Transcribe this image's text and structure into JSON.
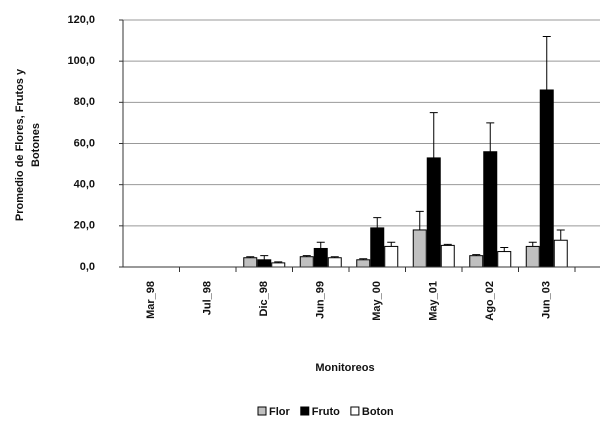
{
  "chart_data": {
    "type": "bar",
    "y_label_lines": [
      "Promedio de Flores, Frutos y",
      "Botones"
    ],
    "x_label": "Monitoreos",
    "categories": [
      "Mar_98",
      "Jul_98",
      "Dic_98",
      "Jun_99",
      "May_00",
      "May_01",
      "Ago_02",
      "Jun_03"
    ],
    "series": [
      {
        "name": "Flor",
        "color": "#c0c0c0",
        "values": [
          0,
          0,
          4.5,
          5,
          3.5,
          18,
          5.5,
          10
        ],
        "errors": [
          0,
          0,
          0.5,
          0.5,
          0.5,
          9,
          0.5,
          2
        ]
      },
      {
        "name": "Fruto",
        "color": "#000000",
        "values": [
          0,
          0,
          3.5,
          9,
          19,
          53,
          56,
          86
        ],
        "errors": [
          0,
          0,
          2,
          3,
          5,
          22,
          14,
          26
        ]
      },
      {
        "name": "Boton",
        "color": "#ffffff",
        "values": [
          0,
          0,
          2,
          4.5,
          10,
          10.5,
          7.5,
          13
        ],
        "errors": [
          0,
          0,
          0.5,
          0.5,
          2,
          0.5,
          2,
          5
        ]
      }
    ],
    "ylim": [
      0,
      120
    ],
    "yticks": [
      {
        "value": 0,
        "label": "0,0"
      },
      {
        "value": 20,
        "label": "20,0"
      },
      {
        "value": 40,
        "label": "40,0"
      },
      {
        "value": 60,
        "label": "60,0"
      },
      {
        "value": 80,
        "label": "80,0"
      },
      {
        "value": 100,
        "label": "100,0"
      },
      {
        "value": 120,
        "label": "120,0"
      }
    ],
    "grid": true,
    "legend": "bottom"
  }
}
